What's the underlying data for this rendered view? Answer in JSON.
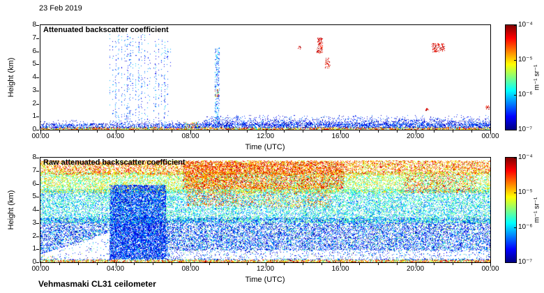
{
  "page": {
    "date_label": "23 Feb 2019",
    "footer": "Vehmasmaki CL31 ceilometer"
  },
  "chart_data": [
    {
      "type": "heatmap",
      "title": "Attenuated backscatter coefficient",
      "xlabel": "Time (UTC)",
      "ylabel": "Height (km)",
      "x_ticks": [
        "00:00",
        "04:00",
        "08:00",
        "12:00",
        "16:00",
        "20:00",
        "00:00"
      ],
      "y_ticks": [
        "0",
        "1",
        "2",
        "3",
        "4",
        "5",
        "6",
        "7",
        "8"
      ],
      "xlim_hours": [
        0,
        24
      ],
      "ylim_km": [
        0,
        8
      ],
      "colorbar": {
        "colormap": "jet",
        "scale": "log",
        "ticks": [
          "10⁻⁴",
          "10⁻⁵",
          "10⁻⁶",
          "10⁻⁷"
        ],
        "unit": "m⁻¹ sr⁻¹"
      },
      "description": "Mostly clear sky; shallow boundary-layer echo below ~1 km all day; scattered blue noise/virga columns 03:30-07:00 up to ~7 km; thin column near 09:20; strong red cloud returns near 14:50-15:25 at 5-7 km and 21:00-21:30 at 6-6.5 km; small red specks near 20:35 (1.5 km) and 23:50 (1.7 km).",
      "render": {
        "regions": [
          {
            "x": [
              0,
              24
            ],
            "y": [
              0,
              0.18
            ],
            "density": 1.2,
            "t": [
              0.4,
              1.0
            ]
          },
          {
            "x": [
              0,
              24
            ],
            "y": [
              0.12,
              0.45
            ],
            "density": 0.6,
            "t": [
              0.0,
              0.3
            ]
          },
          {
            "x": [
              0,
              24
            ],
            "y": [
              0.4,
              0.75
            ],
            "density": 0.2,
            "t": [
              0.0,
              0.25
            ],
            "fadeTop": true
          },
          {
            "x": [
              8.7,
              24
            ],
            "y": [
              0.3,
              1.15
            ],
            "density": 0.45,
            "t": [
              0.0,
              0.28
            ],
            "fadeTop": true
          },
          {
            "x": [
              3.6,
              5.85
            ],
            "y": [
              0.4,
              7.3
            ],
            "density": 0.16,
            "t": [
              0.05,
              0.35
            ],
            "columns": true
          },
          {
            "x": [
              6.05,
              6.95
            ],
            "y": [
              0.4,
              7.0
            ],
            "density": 0.16,
            "t": [
              0.05,
              0.35
            ],
            "columns": true
          },
          {
            "x": [
              9.3,
              9.55
            ],
            "y": [
              0.4,
              6.3
            ],
            "density": 0.3,
            "t": [
              0.05,
              0.4
            ]
          },
          {
            "x": [
              7.7,
              8.4
            ],
            "y": [
              0.15,
              0.55
            ],
            "density": 0.55,
            "t": [
              0.3,
              1.0
            ]
          },
          {
            "x": [
              14.75,
              15.05
            ],
            "y": [
              5.8,
              7.05
            ],
            "density": 0.6,
            "t": [
              0.82,
              1.0
            ]
          },
          {
            "x": [
              15.2,
              15.45
            ],
            "y": [
              4.7,
              5.5
            ],
            "density": 0.45,
            "t": [
              0.8,
              1.0
            ]
          },
          {
            "x": [
              20.9,
              21.55
            ],
            "y": [
              5.95,
              6.6
            ],
            "density": 0.55,
            "t": [
              0.82,
              1.0
            ]
          },
          {
            "x": [
              20.55,
              20.72
            ],
            "y": [
              1.45,
              1.65
            ],
            "density": 0.7,
            "t": [
              0.85,
              1.0
            ]
          },
          {
            "x": [
              23.75,
              23.95
            ],
            "y": [
              1.55,
              1.85
            ],
            "density": 0.7,
            "t": [
              0.8,
              1.0
            ]
          },
          {
            "x": [
              9.3,
              9.5
            ],
            "y": [
              2.5,
              3.1
            ],
            "density": 0.5,
            "t": [
              0.45,
              1.0
            ]
          },
          {
            "x": [
              13.75,
              13.9
            ],
            "y": [
              6.15,
              6.4
            ],
            "density": 0.6,
            "t": [
              0.85,
              1.0
            ]
          }
        ],
        "holes": []
      }
    },
    {
      "type": "heatmap",
      "title": "Raw attenuated backscatter coefficient",
      "xlabel": "Time (UTC)",
      "ylabel": "Height (km)",
      "x_ticks": [
        "00:00",
        "04:00",
        "08:00",
        "12:00",
        "16:00",
        "20:00",
        "00:00"
      ],
      "y_ticks": [
        "0",
        "1",
        "2",
        "3",
        "4",
        "5",
        "6",
        "7",
        "8"
      ],
      "xlim_hours": [
        0,
        24
      ],
      "ylim_km": [
        0,
        8
      ],
      "colorbar": {
        "colormap": "jet",
        "scale": "log",
        "ticks": [
          "10⁻⁴",
          "10⁻⁵",
          "10⁻⁶",
          "10⁻⁷"
        ],
        "unit": "m⁻¹ sr⁻¹"
      },
      "description": "Dense instrument noise at all heights; noise amplitude increases with height from blue (low) through green/yellow to orange-red near 7.5 km, strongest 08:00-16:00; dense blue block 04:00-06:30 below ~6 km; low-noise white wedge lower-left before 04:00 and whitish band below ~0.9 km after 07:00; colored surface echo strip at 0-0.2 km.",
      "render": {
        "regions": [
          {
            "x": [
              0,
              24
            ],
            "y": [
              0,
              0.18
            ],
            "density": 1.2,
            "t": [
              0.4,
              1.0
            ]
          },
          {
            "x": [
              0,
              0.8
            ],
            "y": [
              0.1,
              0.5
            ],
            "density": 0.9,
            "t": [
              0.25,
              0.95
            ]
          },
          {
            "x": [
              0,
              24
            ],
            "y": [
              0.18,
              3.4
            ],
            "density": 0.5,
            "t": [
              0.0,
              0.32
            ]
          },
          {
            "x": [
              0,
              24
            ],
            "y": [
              0.18,
              3.4
            ],
            "density": 0.08,
            "t": [
              0.3,
              0.6
            ]
          },
          {
            "x": [
              0,
              24
            ],
            "y": [
              3.0,
              5.6
            ],
            "density": 0.55,
            "t": [
              0.18,
              0.55
            ]
          },
          {
            "x": [
              0,
              24
            ],
            "y": [
              5.3,
              6.9
            ],
            "density": 0.6,
            "t": [
              0.35,
              0.75
            ]
          },
          {
            "x": [
              0,
              24
            ],
            "y": [
              6.7,
              7.78
            ],
            "density": 0.65,
            "t": [
              0.5,
              0.95
            ]
          },
          {
            "x": [
              7.6,
              16.2
            ],
            "y": [
              5.6,
              7.7
            ],
            "density": 0.45,
            "t": [
              0.65,
              1.0
            ]
          },
          {
            "x": [
              7.8,
              10.5
            ],
            "y": [
              4.3,
              7.4
            ],
            "density": 0.3,
            "t": [
              0.6,
              0.95
            ]
          },
          {
            "x": [
              10.5,
              15.5
            ],
            "y": [
              4.2,
              6.0
            ],
            "density": 0.2,
            "t": [
              0.55,
              0.9
            ]
          },
          {
            "x": [
              3.7,
              6.7
            ],
            "y": [
              0.25,
              5.9
            ],
            "density": 0.9,
            "t": [
              0.02,
              0.3
            ]
          },
          {
            "x": [
              19.4,
              23.3
            ],
            "y": [
              5.3,
              6.7
            ],
            "density": 0.15,
            "t": [
              0.78,
              1.0
            ]
          }
        ],
        "holes": [
          {
            "x": [
              0,
              3.7
            ],
            "y0": 0.22,
            "a": 0.6,
            "b": 0.45,
            "keep": 0.1
          },
          {
            "x": [
              6.9,
              24
            ],
            "y0": 0.26,
            "a": 0.92,
            "b": 0,
            "keep": 0.22
          }
        ]
      }
    }
  ]
}
